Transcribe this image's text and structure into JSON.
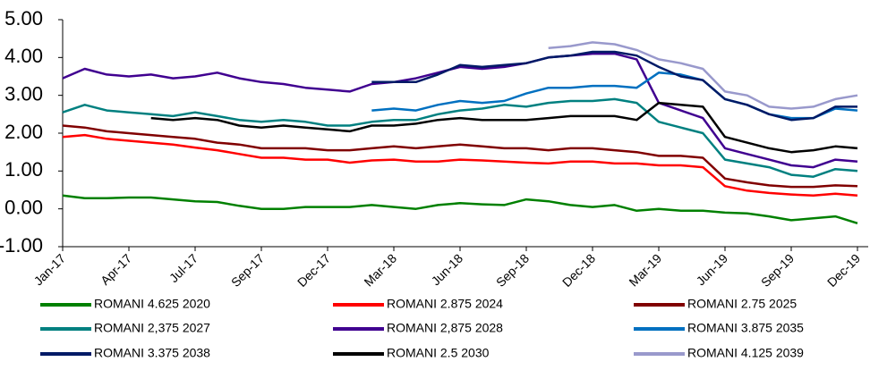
{
  "chart_data": {
    "type": "line",
    "categories": [
      "Jan-17",
      null,
      null,
      "Apr-17",
      null,
      null,
      "Jul-17",
      null,
      null,
      "Sep-17",
      null,
      null,
      "Dec-17",
      null,
      null,
      "Mar-18",
      null,
      null,
      "Jun-18",
      null,
      null,
      "Sep-18",
      null,
      null,
      "Dec-18",
      null,
      null,
      "Mar-19",
      null,
      null,
      "Jun-19",
      null,
      null,
      "Sep-19",
      null,
      null,
      "Dec-19"
    ],
    "ylim": [
      -1,
      5
    ],
    "yticks": [
      {
        "value": 5,
        "label": "5.00"
      },
      {
        "value": 4,
        "label": "4.00"
      },
      {
        "value": 3,
        "label": "3.00"
      },
      {
        "value": 2,
        "label": "2.00"
      },
      {
        "value": 1,
        "label": "1.00"
      },
      {
        "value": 0,
        "label": "0.00"
      },
      {
        "value": -1,
        "label": "-1.00"
      }
    ],
    "series": [
      {
        "name": "ROMANI 4.625  2020",
        "color": "#008000",
        "values": [
          0.35,
          0.28,
          0.28,
          0.3,
          0.3,
          0.25,
          0.2,
          0.18,
          0.08,
          0.0,
          0.0,
          0.05,
          0.05,
          0.05,
          0.1,
          0.05,
          0.0,
          0.1,
          0.15,
          0.12,
          0.1,
          0.25,
          0.2,
          0.1,
          0.05,
          0.1,
          -0.05,
          0.0,
          -0.05,
          -0.05,
          -0.1,
          -0.12,
          -0.2,
          -0.3,
          -0.25,
          -0.2,
          -0.38
        ]
      },
      {
        "name": "ROMANI 2.875  2024",
        "color": "#ff0000",
        "values": [
          1.9,
          1.95,
          1.85,
          1.8,
          1.75,
          1.7,
          1.62,
          1.55,
          1.45,
          1.35,
          1.35,
          1.3,
          1.3,
          1.22,
          1.28,
          1.3,
          1.25,
          1.25,
          1.3,
          1.28,
          1.25,
          1.22,
          1.2,
          1.25,
          1.25,
          1.2,
          1.2,
          1.15,
          1.15,
          1.1,
          0.6,
          0.48,
          0.42,
          0.38,
          0.35,
          0.4,
          0.35
        ]
      },
      {
        "name": "ROMANI 2.75 2025",
        "color": "#800000",
        "values": [
          2.2,
          2.15,
          2.05,
          2.0,
          1.95,
          1.9,
          1.85,
          1.75,
          1.7,
          1.6,
          1.6,
          1.6,
          1.55,
          1.55,
          1.6,
          1.65,
          1.6,
          1.65,
          1.7,
          1.65,
          1.6,
          1.6,
          1.55,
          1.6,
          1.6,
          1.55,
          1.5,
          1.4,
          1.4,
          1.35,
          0.8,
          0.7,
          0.62,
          0.58,
          0.58,
          0.62,
          0.6
        ]
      },
      {
        "name": "ROMANI 2,375 2027",
        "color": "#008080",
        "values": [
          2.55,
          2.75,
          2.6,
          2.55,
          2.5,
          2.45,
          2.55,
          2.45,
          2.35,
          2.3,
          2.35,
          2.3,
          2.2,
          2.2,
          2.3,
          2.35,
          2.35,
          2.5,
          2.6,
          2.65,
          2.75,
          2.7,
          2.8,
          2.85,
          2.85,
          2.9,
          2.8,
          2.3,
          2.15,
          2.0,
          1.3,
          1.2,
          1.1,
          0.9,
          0.85,
          1.05,
          1.0
        ]
      },
      {
        "name": "ROMANI 2,875 2028",
        "color": "#400090",
        "values": [
          3.45,
          3.7,
          3.55,
          3.5,
          3.55,
          3.45,
          3.5,
          3.6,
          3.45,
          3.35,
          3.3,
          3.2,
          3.15,
          3.1,
          3.3,
          3.35,
          3.45,
          3.6,
          3.75,
          3.7,
          3.75,
          3.85,
          4.0,
          4.05,
          4.1,
          4.1,
          3.95,
          2.8,
          2.6,
          2.4,
          1.6,
          1.45,
          1.3,
          1.15,
          1.1,
          1.3,
          1.25
        ]
      },
      {
        "name": "ROMANI 3.875 2035",
        "color": "#0070c0",
        "values": [
          null,
          null,
          null,
          null,
          null,
          null,
          null,
          null,
          null,
          null,
          null,
          null,
          null,
          null,
          2.6,
          2.65,
          2.6,
          2.75,
          2.85,
          2.8,
          2.85,
          3.05,
          3.2,
          3.2,
          3.25,
          3.25,
          3.2,
          3.6,
          3.55,
          3.4,
          2.9,
          2.75,
          2.5,
          2.4,
          2.4,
          2.65,
          2.6
        ]
      },
      {
        "name": "ROMANI 3.375 2038",
        "color": "#001a66",
        "values": [
          null,
          null,
          null,
          null,
          null,
          null,
          null,
          null,
          null,
          null,
          null,
          null,
          null,
          null,
          3.35,
          3.35,
          3.35,
          3.55,
          3.8,
          3.75,
          3.8,
          3.85,
          4.0,
          4.05,
          4.15,
          4.15,
          4.05,
          3.75,
          3.5,
          3.4,
          2.9,
          2.75,
          2.5,
          2.35,
          2.4,
          2.7,
          2.7
        ]
      },
      {
        "name": "ROMANI 2.5 2030",
        "color": "#000000",
        "values": [
          null,
          null,
          null,
          null,
          2.4,
          2.35,
          2.4,
          2.35,
          2.2,
          2.15,
          2.2,
          2.15,
          2.1,
          2.05,
          2.2,
          2.2,
          2.25,
          2.35,
          2.4,
          2.35,
          2.35,
          2.35,
          2.4,
          2.45,
          2.45,
          2.45,
          2.35,
          2.8,
          2.75,
          2.7,
          1.9,
          1.75,
          1.6,
          1.5,
          1.55,
          1.65,
          1.6
        ]
      },
      {
        "name": "ROMANI 4.125 2039",
        "color": "#9999cc",
        "values": [
          null,
          null,
          null,
          null,
          null,
          null,
          null,
          null,
          null,
          null,
          null,
          null,
          null,
          null,
          null,
          null,
          null,
          null,
          null,
          null,
          null,
          null,
          4.25,
          4.3,
          4.4,
          4.35,
          4.2,
          3.95,
          3.85,
          3.7,
          3.1,
          3.0,
          2.7,
          2.65,
          2.7,
          2.9,
          3.0
        ]
      }
    ]
  }
}
